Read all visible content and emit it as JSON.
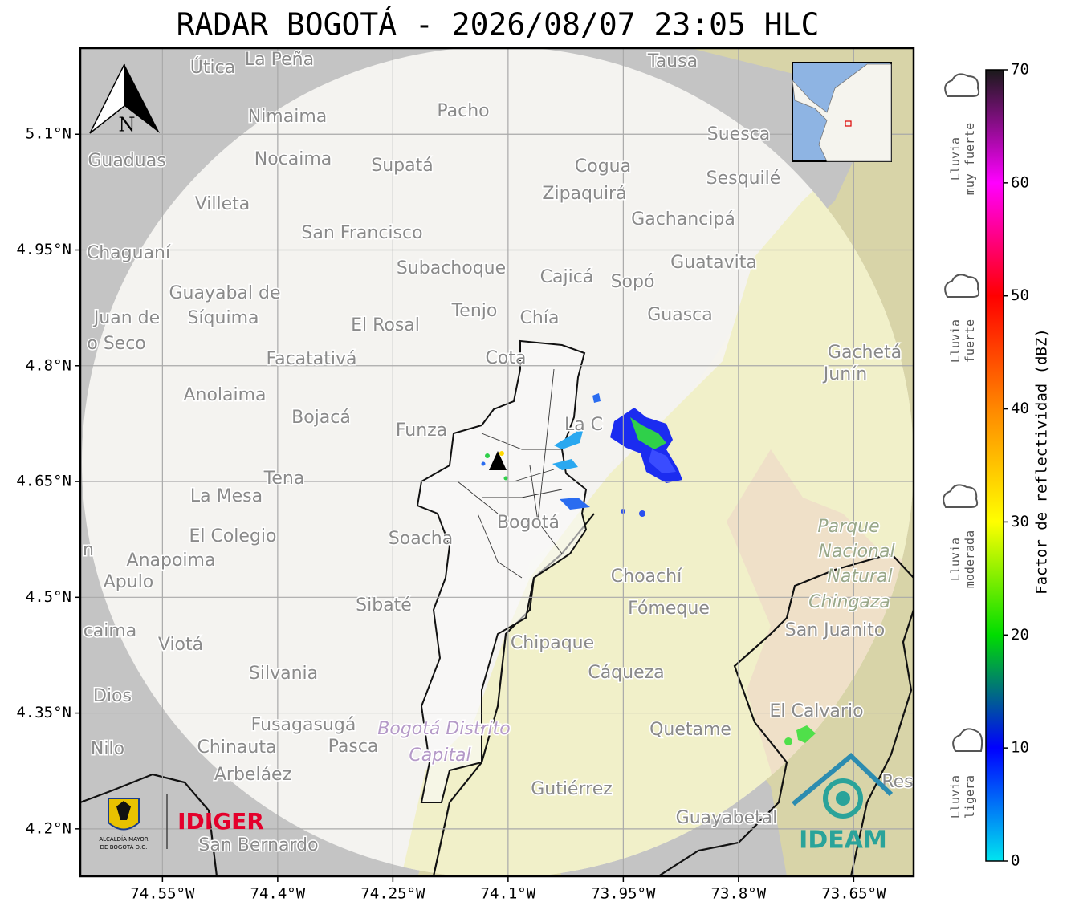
{
  "header": {
    "title": "RADAR BOGOTÁ - 2026/08/07 23:05 HLC"
  },
  "map": {
    "xlim": [
      -74.657,
      -73.572
    ],
    "ylim": [
      4.1385,
      5.2115
    ],
    "xticks": [
      {
        "value": -74.55,
        "label": "74.55°W"
      },
      {
        "value": -74.4,
        "label": "74.4°W"
      },
      {
        "value": -74.25,
        "label": "74.25°W"
      },
      {
        "value": -74.1,
        "label": "74.1°W"
      },
      {
        "value": -73.95,
        "label": "73.95°W"
      },
      {
        "value": -73.8,
        "label": "73.8°W"
      },
      {
        "value": -73.65,
        "label": "73.65°W"
      }
    ],
    "yticks": [
      {
        "value": 5.1,
        "label": "5.1°N"
      },
      {
        "value": 4.95,
        "label": "4.95°N"
      },
      {
        "value": 4.8,
        "label": "4.8°N"
      },
      {
        "value": 4.65,
        "label": "4.65°N"
      },
      {
        "value": 4.5,
        "label": "4.5°N"
      },
      {
        "value": 4.35,
        "label": "4.35°N"
      },
      {
        "value": 4.2,
        "label": "4.2°N"
      }
    ],
    "north": "N",
    "places": [
      "La Peña",
      "Útica",
      "Tausa",
      "Pacho",
      "Nimaima",
      "Guaduas",
      "Nocaima",
      "Supatá",
      "Cogua",
      "Suesca",
      "Sesquilé",
      "Zipaquirá",
      "Villeta",
      "Gachancipá",
      "San Francisco",
      "Chaguaní",
      "Guatavita",
      "Subachoque",
      "Cajicá",
      "Sopó",
      "Guayabal de",
      "Síquima",
      "Juan de",
      "o Seco",
      "Tenjo",
      "Chía",
      "Guasca",
      "El Rosal",
      "Gachetá",
      "Junín",
      "Facatativá",
      "Cota",
      "Anolaima",
      "Bojacá",
      "Funza",
      "La C",
      "Tena",
      "La Mesa",
      "Bogotá",
      "El Colegio",
      "Soacha",
      "Anapoima",
      "Apulo",
      "Choachí",
      "Sibaté",
      "Fómeque",
      "San Juanito",
      "caima",
      "Viotá",
      "Chipaque",
      "Silvania",
      "Cáqueza",
      "Dios",
      "El Calvario",
      "Fusagasugá",
      "Quetame",
      "Nilo",
      "Chinauta",
      "Pasca",
      "Arbeláez",
      "Gutiérrez",
      "Res",
      "Guayabetal",
      "San Bernardo",
      "n"
    ],
    "park": [
      "Parque",
      "Nacional",
      "Natural",
      "Chingaza"
    ],
    "district": [
      "Bogotá Distrito",
      "Capital"
    ]
  },
  "logos": {
    "idiger": "IDIGER",
    "ideam": "IDEAM",
    "alcaldia": [
      "ALCALDÍA MAYOR",
      "DE BOGOTÁ D.C."
    ]
  },
  "colorbar": {
    "label": "Factor de reflectividad (dBZ)",
    "lim": [
      0,
      70
    ],
    "ticks": [
      0,
      10,
      20,
      30,
      40,
      50,
      60,
      70
    ],
    "colors": [
      "#00e5ef",
      "#0000ff",
      "#00dd00",
      "#ffff00",
      "#ff8800",
      "#ff0000",
      "#ff00ff",
      "#1a1a1a"
    ],
    "categories": [
      [
        "Lluvia",
        "muy fuerte"
      ],
      [
        "Lluvia",
        "fuerte"
      ],
      [
        "Lluvia",
        "moderada"
      ],
      [
        "Lluvia",
        "ligera"
      ]
    ]
  }
}
